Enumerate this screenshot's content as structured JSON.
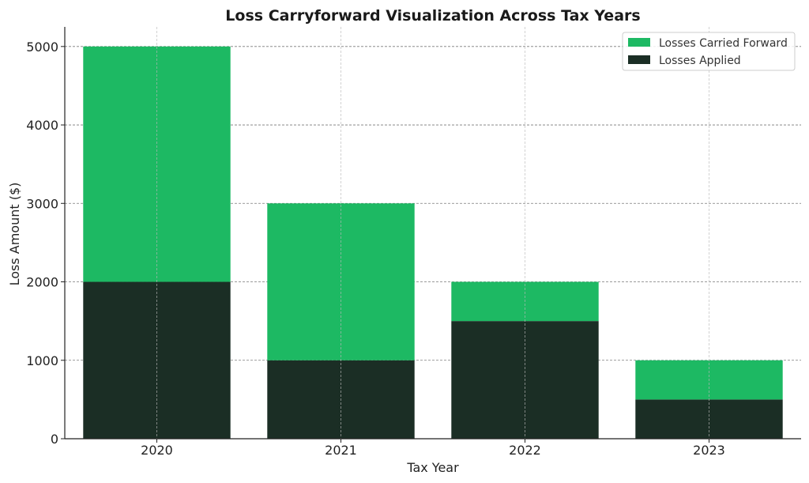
{
  "chart_data": {
    "type": "bar",
    "stacked": true,
    "title": "Loss Carryforward Visualization Across Tax Years",
    "xlabel": "Tax Year",
    "ylabel": "Loss Amount ($)",
    "categories": [
      "2020",
      "2021",
      "2022",
      "2023"
    ],
    "ylim": [
      0,
      5250
    ],
    "yticks": [
      0,
      1000,
      2000,
      3000,
      4000,
      5000
    ],
    "grid": true,
    "legend_position": "top-right",
    "series": [
      {
        "name": "Losses Applied",
        "values": [
          2000,
          1000,
          1500,
          500
        ],
        "color": "#1b2e25"
      },
      {
        "name": "Losses Carried Forward",
        "values": [
          3000,
          2000,
          500,
          500
        ],
        "color": "#1db963"
      }
    ],
    "legend_order": [
      "Losses Carried Forward",
      "Losses Applied"
    ]
  }
}
